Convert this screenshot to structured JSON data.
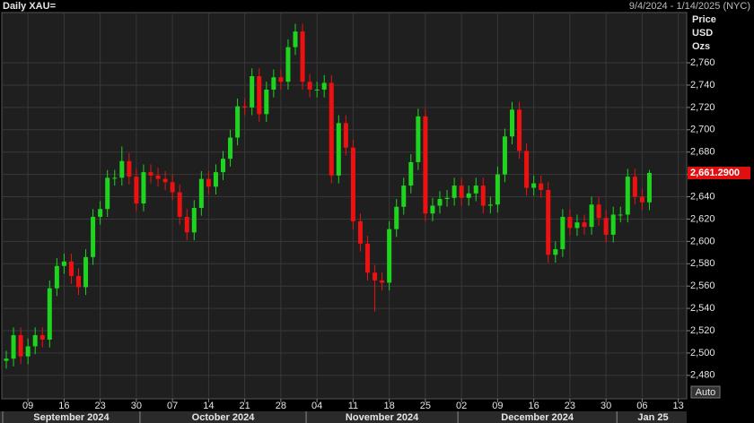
{
  "chart_data": {
    "type": "candlestick",
    "title": "Daily XAU=",
    "date_range": "9/4/2024 - 1/14/2025 (NYC)",
    "y_axis_label": [
      "Price",
      "USD",
      "Ozs"
    ],
    "auto_button": "Auto",
    "up_color": "#1ed41e",
    "down_color": "#ee1111",
    "grid": true,
    "x": [
      "2024-09-04",
      "2024-09-05",
      "2024-09-06",
      "2024-09-09",
      "2024-09-10",
      "2024-09-11",
      "2024-09-12",
      "2024-09-13",
      "2024-09-16",
      "2024-09-17",
      "2024-09-18",
      "2024-09-19",
      "2024-09-20",
      "2024-09-23",
      "2024-09-24",
      "2024-09-25",
      "2024-09-26",
      "2024-09-27",
      "2024-09-30",
      "2024-10-01",
      "2024-10-02",
      "2024-10-03",
      "2024-10-04",
      "2024-10-07",
      "2024-10-08",
      "2024-10-09",
      "2024-10-10",
      "2024-10-11",
      "2024-10-14",
      "2024-10-15",
      "2024-10-16",
      "2024-10-17",
      "2024-10-18",
      "2024-10-21",
      "2024-10-22",
      "2024-10-23",
      "2024-10-24",
      "2024-10-25",
      "2024-10-28",
      "2024-10-29",
      "2024-10-30",
      "2024-10-31",
      "2024-11-01",
      "2024-11-04",
      "2024-11-05",
      "2024-11-06",
      "2024-11-07",
      "2024-11-08",
      "2024-11-11",
      "2024-11-12",
      "2024-11-13",
      "2024-11-14",
      "2024-11-15",
      "2024-11-18",
      "2024-11-19",
      "2024-11-20",
      "2024-11-21",
      "2024-11-22",
      "2024-11-25",
      "2024-11-26",
      "2024-11-27",
      "2024-11-28",
      "2024-11-29",
      "2024-12-02",
      "2024-12-03",
      "2024-12-04",
      "2024-12-05",
      "2024-12-06",
      "2024-12-09",
      "2024-12-10",
      "2024-12-11",
      "2024-12-12",
      "2024-12-13",
      "2024-12-16",
      "2024-12-17",
      "2024-12-18",
      "2024-12-19",
      "2024-12-20",
      "2024-12-23",
      "2024-12-24",
      "2024-12-25",
      "2024-12-26",
      "2024-12-27",
      "2024-12-30",
      "2024-12-31",
      "2025-01-01",
      "2025-01-02",
      "2025-01-03",
      "2025-01-06",
      "2025-01-07",
      "2025-01-08",
      "2025-01-09",
      "2025-01-10",
      "2025-01-13",
      "2025-01-14"
    ],
    "open": [
      2493,
      2495,
      2516,
      2497,
      2506,
      2516,
      2512,
      2558,
      2578,
      2582,
      2569,
      2559,
      2586,
      2622,
      2629,
      2657,
      2657,
      2672,
      2658,
      2634,
      2662,
      2659,
      2656,
      2653,
      2644,
      2622,
      2608,
      2630,
      2656,
      2649,
      2662,
      2674,
      2693,
      2721,
      2720,
      2748,
      2714,
      2736,
      2747,
      2743,
      2774,
      2788,
      2743,
      2736,
      2736,
      2742,
      2659,
      2706,
      2684,
      2618,
      2598,
      2572,
      2565,
      2563,
      2611,
      2631,
      2650,
      2671,
      2712,
      2625,
      2632,
      2638,
      2639,
      2650,
      2639,
      2643,
      2650,
      2632,
      2633,
      2660,
      2694,
      2718,
      2681,
      2648,
      2652,
      2646,
      2588,
      2593,
      2622,
      2612,
      2617,
      2613,
      2633,
      2621,
      2606,
      2624,
      2624,
      2658,
      2640,
      2635,
      null,
      null,
      null,
      null,
      null
    ],
    "high": [
      2502,
      2523,
      2523,
      2513,
      2523,
      2523,
      2565,
      2585,
      2589,
      2589,
      2576,
      2593,
      2629,
      2636,
      2664,
      2664,
      2685,
      2679,
      2665,
      2669,
      2669,
      2666,
      2663,
      2660,
      2651,
      2629,
      2637,
      2663,
      2663,
      2669,
      2681,
      2700,
      2728,
      2728,
      2755,
      2755,
      2743,
      2754,
      2754,
      2781,
      2795,
      2795,
      2750,
      2743,
      2749,
      2749,
      2713,
      2713,
      2691,
      2625,
      2605,
      2579,
      2572,
      2618,
      2638,
      2657,
      2678,
      2719,
      2719,
      2639,
      2645,
      2646,
      2657,
      2657,
      2650,
      2657,
      2657,
      2640,
      2667,
      2701,
      2725,
      2725,
      2688,
      2659,
      2659,
      2653,
      2600,
      2629,
      2629,
      2624,
      2624,
      2640,
      2640,
      2628,
      2631,
      2631,
      2665,
      2665,
      2647,
      2664,
      null,
      null,
      null,
      null,
      null
    ],
    "low": [
      2486,
      2488,
      2490,
      2490,
      2499,
      2505,
      2505,
      2551,
      2571,
      2562,
      2552,
      2552,
      2579,
      2615,
      2622,
      2650,
      2650,
      2651,
      2627,
      2627,
      2652,
      2649,
      2646,
      2637,
      2615,
      2601,
      2601,
      2623,
      2642,
      2642,
      2655,
      2667,
      2686,
      2713,
      2713,
      2707,
      2707,
      2729,
      2736,
      2736,
      2767,
      2736,
      2729,
      2729,
      2729,
      2652,
      2652,
      2677,
      2611,
      2591,
      2565,
      2537,
      2556,
      2556,
      2604,
      2624,
      2643,
      2664,
      2618,
      2618,
      2625,
      2631,
      2632,
      2632,
      2632,
      2636,
      2625,
      2625,
      2626,
      2653,
      2687,
      2674,
      2641,
      2641,
      2639,
      2581,
      2581,
      2586,
      2605,
      2605,
      2606,
      2606,
      2614,
      2599,
      2599,
      2617,
      2617,
      2633,
      2628,
      2628,
      null,
      null,
      null,
      null,
      null
    ],
    "close": [
      2495,
      2516,
      2497,
      2506,
      2516,
      2512,
      2558,
      2578,
      2582,
      2569,
      2559,
      2586,
      2622,
      2629,
      2657,
      2657,
      2672,
      2658,
      2634,
      2662,
      2659,
      2656,
      2653,
      2644,
      2622,
      2608,
      2630,
      2656,
      2649,
      2662,
      2674,
      2693,
      2721,
      2720,
      2748,
      2714,
      2736,
      2747,
      2743,
      2774,
      2788,
      2743,
      2736,
      2736,
      2742,
      2659,
      2706,
      2684,
      2618,
      2598,
      2572,
      2565,
      2563,
      2611,
      2631,
      2650,
      2671,
      2712,
      2625,
      2632,
      2638,
      2639,
      2650,
      2639,
      2643,
      2650,
      2632,
      2633,
      2660,
      2694,
      2718,
      2681,
      2648,
      2652,
      2646,
      2588,
      2593,
      2622,
      2612,
      2617,
      2613,
      2633,
      2621,
      2606,
      2624,
      2624,
      2658,
      2640,
      2635,
      2661.29,
      null,
      null,
      null,
      null,
      null
    ],
    "last_price": {
      "value": 2661.29,
      "label": "2,661.2900"
    },
    "ylim": [
      2459,
      2805
    ],
    "yticks": [
      {
        "value": 2480,
        "label": "2,480"
      },
      {
        "value": 2500,
        "label": "2,500"
      },
      {
        "value": 2520,
        "label": "2,520"
      },
      {
        "value": 2540,
        "label": "2,540"
      },
      {
        "value": 2560,
        "label": "2,560"
      },
      {
        "value": 2580,
        "label": "2,580"
      },
      {
        "value": 2600,
        "label": "2,600"
      },
      {
        "value": 2620,
        "label": "2,620"
      },
      {
        "value": 2640,
        "label": "2,640"
      },
      {
        "value": 2660,
        "label": "2,660"
      },
      {
        "value": 2680,
        "label": "2,680"
      },
      {
        "value": 2700,
        "label": "2,700"
      },
      {
        "value": 2720,
        "label": "2,720"
      },
      {
        "value": 2740,
        "label": "2,740"
      },
      {
        "value": 2760,
        "label": "2,760"
      }
    ],
    "xticks": [
      {
        "value": "2024-09-09",
        "label": "09"
      },
      {
        "value": "2024-09-16",
        "label": "16"
      },
      {
        "value": "2024-09-23",
        "label": "23"
      },
      {
        "value": "2024-09-30",
        "label": "30"
      },
      {
        "value": "2024-10-07",
        "label": "07"
      },
      {
        "value": "2024-10-14",
        "label": "14"
      },
      {
        "value": "2024-10-21",
        "label": "21"
      },
      {
        "value": "2024-10-28",
        "label": "28"
      },
      {
        "value": "2024-11-04",
        "label": "04"
      },
      {
        "value": "2024-11-11",
        "label": "11"
      },
      {
        "value": "2024-11-18",
        "label": "18"
      },
      {
        "value": "2024-11-25",
        "label": "25"
      },
      {
        "value": "2024-12-02",
        "label": "02"
      },
      {
        "value": "2024-12-09",
        "label": "09"
      },
      {
        "value": "2024-12-16",
        "label": "16"
      },
      {
        "value": "2024-12-23",
        "label": "23"
      },
      {
        "value": "2024-12-30",
        "label": "30"
      },
      {
        "value": "2025-01-06",
        "label": "06"
      },
      {
        "value": "2025-01-13",
        "label": "13"
      }
    ],
    "month_ticks": [
      {
        "value": "2024-09",
        "label": "September 2024"
      },
      {
        "value": "2024-10",
        "label": "October 2024"
      },
      {
        "value": "2024-11",
        "label": "November 2024"
      },
      {
        "value": "2024-12",
        "label": "December 2024"
      },
      {
        "value": "2025-01",
        "label": "Jan 25"
      }
    ]
  }
}
